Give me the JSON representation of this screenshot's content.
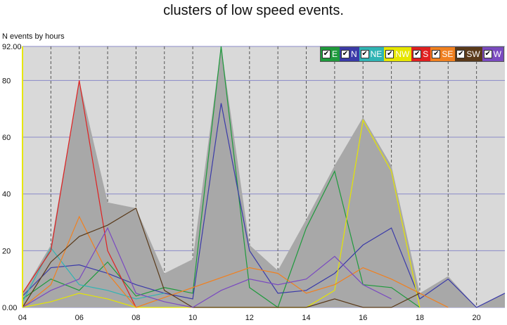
{
  "caption": "clusters of low speed events.",
  "chart_data": {
    "type": "line",
    "ylabel": "N events by hours",
    "xlabel": "",
    "ylim": [
      0,
      92
    ],
    "y_ticks": [
      "92.00",
      "80",
      "60",
      "40",
      "20",
      "0.00"
    ],
    "x_ticks": [
      "04",
      "06",
      "08",
      "10",
      "12",
      "14",
      "16",
      "18",
      "20"
    ],
    "x_tick_values": [
      4,
      6,
      8,
      10,
      12,
      14,
      16,
      18,
      20
    ],
    "x_range": [
      4,
      21
    ],
    "legend_position": "top-right",
    "grid": true,
    "total_area": {
      "x": [
        4,
        5,
        6,
        7,
        8,
        9,
        10,
        11,
        12,
        13,
        14,
        15,
        16,
        17,
        18,
        19,
        20,
        21
      ],
      "y": [
        5,
        22,
        80,
        37,
        35,
        12,
        17,
        92,
        22,
        13,
        31,
        50,
        67,
        50,
        5,
        11,
        0,
        5
      ]
    },
    "series": [
      {
        "name": "E",
        "color": "#1e9a3c",
        "checked": true,
        "x": [
          4,
          5,
          6,
          7,
          8,
          9,
          10,
          11,
          12,
          13,
          14,
          15,
          16,
          17,
          18
        ],
        "y": [
          3,
          10,
          6,
          16,
          4,
          7,
          5,
          92,
          7,
          0,
          28,
          48,
          8,
          7,
          0
        ]
      },
      {
        "name": "N",
        "color": "#3a3aa8",
        "checked": true,
        "x": [
          4,
          5,
          6,
          7,
          8,
          9,
          10,
          11,
          12,
          13,
          14,
          15,
          16,
          17,
          18,
          19,
          20,
          21
        ],
        "y": [
          4,
          14,
          15,
          12,
          8,
          5,
          3,
          72,
          20,
          5,
          6,
          12,
          22,
          28,
          3,
          10,
          0,
          5
        ]
      },
      {
        "name": "NE",
        "color": "#2fb4b4",
        "checked": true,
        "x": [
          4,
          5,
          6,
          7,
          8,
          9
        ],
        "y": [
          2,
          21,
          8,
          6,
          3,
          5
        ]
      },
      {
        "name": "NW",
        "color": "#e6e600",
        "checked": true,
        "x": [
          4,
          5,
          6,
          7,
          8,
          14,
          15,
          16,
          17,
          18
        ],
        "y": [
          0,
          2,
          5,
          3,
          0,
          0,
          6,
          66,
          48,
          0
        ]
      },
      {
        "name": "S",
        "color": "#e02020",
        "checked": true,
        "x": [
          4,
          5,
          6,
          7,
          8
        ],
        "y": [
          5,
          20,
          80,
          20,
          0
        ]
      },
      {
        "name": "SE",
        "color": "#f08020",
        "checked": true,
        "x": [
          4,
          5,
          6,
          7,
          8,
          12,
          13,
          14,
          15,
          16,
          17,
          18,
          19
        ],
        "y": [
          0,
          8,
          32,
          12,
          0,
          14,
          12,
          5,
          8,
          14,
          10,
          5,
          0
        ]
      },
      {
        "name": "SW",
        "color": "#5a3a1a",
        "checked": true,
        "x": [
          4,
          5,
          6,
          7,
          8,
          9,
          10,
          14,
          15,
          16,
          17,
          18
        ],
        "y": [
          0,
          16,
          25,
          29,
          35,
          6,
          0,
          0,
          3,
          0,
          0,
          5
        ]
      },
      {
        "name": "W",
        "color": "#7a4ac0",
        "checked": true,
        "x": [
          4,
          5,
          6,
          7,
          8,
          9,
          10,
          11,
          12,
          13,
          14,
          15,
          16,
          17
        ],
        "y": [
          0,
          6,
          10,
          28,
          5,
          2,
          0,
          6,
          10,
          8,
          10,
          18,
          8,
          3
        ]
      }
    ]
  }
}
